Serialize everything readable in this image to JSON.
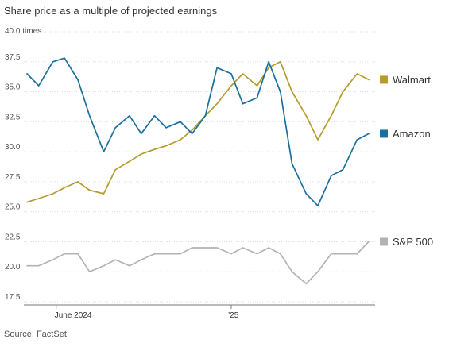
{
  "chart_data": {
    "type": "line",
    "title": "Share price as a multiple of projected earnings",
    "source": "Source: FactSet",
    "unit_label": "40.0 times",
    "xlabel": "",
    "ylabel": "",
    "ylim": [
      17.5,
      40.0
    ],
    "y_ticks": [
      "37.5",
      "35.0",
      "32.5",
      "30.0",
      "27.5",
      "25.0",
      "22.5",
      "20.0",
      "17.5"
    ],
    "x_ticks": [
      "June 2024",
      "’25"
    ],
    "grid": true,
    "legend_position": "right",
    "x": [
      "2024-05-01",
      "2024-05-15",
      "2024-06-01",
      "2024-06-15",
      "2024-07-01",
      "2024-07-15",
      "2024-08-01",
      "2024-08-15",
      "2024-09-01",
      "2024-09-15",
      "2024-10-01",
      "2024-10-15",
      "2024-11-01",
      "2024-11-15",
      "2024-12-01",
      "2024-12-15",
      "2025-01-01",
      "2025-01-15",
      "2025-02-01",
      "2025-02-15",
      "2025-03-01",
      "2025-03-15",
      "2025-04-01",
      "2025-04-15",
      "2025-05-01",
      "2025-05-15",
      "2025-06-01",
      "2025-06-15"
    ],
    "series": [
      {
        "name": "Walmart",
        "color": "#b59a2c",
        "values": [
          25.8,
          26.1,
          26.5,
          27.0,
          27.5,
          26.8,
          26.5,
          28.5,
          29.2,
          29.8,
          30.2,
          30.5,
          31.0,
          31.8,
          33.0,
          34.0,
          35.5,
          36.5,
          35.5,
          37.0,
          37.5,
          35.0,
          33.0,
          31.0,
          33.0,
          35.0,
          36.5,
          36.0
        ]
      },
      {
        "name": "Amazon",
        "color": "#1a6f9e",
        "values": [
          36.5,
          35.5,
          37.5,
          37.8,
          36.0,
          33.0,
          30.0,
          32.0,
          33.0,
          31.5,
          33.0,
          32.0,
          32.5,
          31.5,
          33.0,
          37.0,
          36.5,
          34.0,
          34.5,
          37.5,
          35.0,
          29.0,
          26.5,
          25.5,
          28.0,
          28.5,
          31.0,
          31.5
        ]
      },
      {
        "name": "S&P 500",
        "color": "#b3b3b3",
        "values": [
          20.5,
          20.5,
          21.0,
          21.5,
          21.5,
          20.0,
          20.5,
          21.0,
          20.5,
          21.0,
          21.5,
          21.5,
          21.5,
          22.0,
          22.0,
          22.0,
          21.5,
          22.0,
          21.5,
          22.0,
          21.5,
          20.0,
          19.0,
          20.0,
          21.5,
          21.5,
          21.5,
          22.5
        ]
      }
    ]
  }
}
